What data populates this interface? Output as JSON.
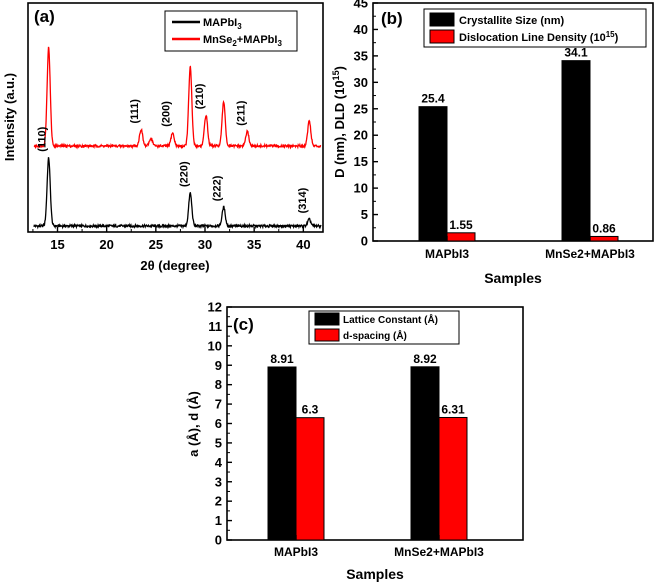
{
  "colors": {
    "black": "#000000",
    "red": "#ff0000"
  },
  "chart_data": [
    {
      "type": "line",
      "panel_label": "(a)",
      "title": "",
      "xlabel": "2θ (degree)",
      "ylabel": "Intensity (a.u.)",
      "xlim": [
        12,
        42
      ],
      "xticks": [
        15,
        20,
        25,
        30,
        35,
        40
      ],
      "xtick_labels": [
        "15",
        "20",
        "25",
        "30",
        "35",
        "40"
      ],
      "legend": {
        "position": "top-right"
      },
      "series": [
        {
          "name": "MAPbI3",
          "legend_main": "MAPbI",
          "legend_sub": "3",
          "color": "#000000",
          "offset": 0,
          "peaks": [
            {
              "x": 14.1,
              "h": 0.62
            },
            {
              "x": 28.5,
              "h": 0.3
            },
            {
              "x": 31.9,
              "h": 0.17
            },
            {
              "x": 40.6,
              "h": 0.06
            }
          ]
        },
        {
          "name": "MnSe2+MAPbI3",
          "legend_main": "MnSe",
          "legend_sub": "2",
          "legend_rest": "+MAPbI",
          "legend_sub2": "3",
          "color": "#ff0000",
          "offset": 1,
          "peaks": [
            {
              "x": 14.1,
              "h": 0.9
            },
            {
              "x": 23.5,
              "h": 0.15
            },
            {
              "x": 24.5,
              "h": 0.07
            },
            {
              "x": 26.7,
              "h": 0.12
            },
            {
              "x": 28.5,
              "h": 0.72
            },
            {
              "x": 30.1,
              "h": 0.28
            },
            {
              "x": 31.9,
              "h": 0.4
            },
            {
              "x": 34.3,
              "h": 0.13
            },
            {
              "x": 40.6,
              "h": 0.23
            }
          ]
        }
      ],
      "annotations": [
        {
          "text": "(110)",
          "x": 14.1,
          "trace": "MAPbI3"
        },
        {
          "text": "(220)",
          "x": 28.5,
          "trace": "MAPbI3"
        },
        {
          "text": "(222)",
          "x": 31.9,
          "trace": "MAPbI3"
        },
        {
          "text": "(314)",
          "x": 40.6,
          "trace": "MAPbI3"
        },
        {
          "text": "(111)",
          "x": 23.5,
          "trace": "MnSe2+MAPbI3"
        },
        {
          "text": "(200)",
          "x": 26.7,
          "trace": "MnSe2+MAPbI3"
        },
        {
          "text": "(210)",
          "x": 30.1,
          "trace": "MnSe2+MAPbI3"
        },
        {
          "text": "(211)",
          "x": 34.3,
          "trace": "MnSe2+MAPbI3"
        }
      ]
    },
    {
      "type": "bar",
      "panel_label": "(b)",
      "title": "",
      "categories": [
        "MAPbI3",
        "MnSe2+MAPbI3"
      ],
      "series": [
        {
          "name": "Crystallite Size (nm)",
          "color": "#000000",
          "values": [
            25.4,
            34.1
          ],
          "value_labels": [
            "25.4",
            "34.1"
          ]
        },
        {
          "name": "Dislocation Line Density (10",
          "name_sup": "15",
          "name_end": ")",
          "color": "#ff0000",
          "values": [
            1.55,
            0.86
          ],
          "value_labels": [
            "1.55",
            "0.86"
          ]
        }
      ],
      "xlabel": "Samples",
      "ylabel": "D (nm), DLD (10",
      "ylabel_sup": "15",
      "ylabel_end": ")",
      "ylim": [
        0,
        45
      ],
      "yticks": [
        "0",
        "5",
        "10",
        "15",
        "20",
        "25",
        "30",
        "35",
        "40",
        "45"
      ],
      "legend": {
        "position": "top-left"
      }
    },
    {
      "type": "bar",
      "panel_label": "(c)",
      "title": "",
      "categories": [
        "MAPbI3",
        "MnSe2+MAPbI3"
      ],
      "series": [
        {
          "name": "Lattice Constant (Å)",
          "color": "#000000",
          "values": [
            8.91,
            8.92
          ],
          "value_labels": [
            "8.91",
            "8.92"
          ]
        },
        {
          "name": "d-spacing (Å)",
          "color": "#ff0000",
          "values": [
            6.3,
            6.31
          ],
          "value_labels": [
            "6.3",
            "6.31"
          ]
        }
      ],
      "xlabel": "Samples",
      "ylabel": "a (Å), d (Å)",
      "ylim": [
        0,
        12
      ],
      "yticks": [
        "0",
        "1",
        "2",
        "3",
        "4",
        "5",
        "6",
        "7",
        "8",
        "9",
        "10",
        "11",
        "12"
      ],
      "legend": {
        "position": "top-center"
      }
    }
  ]
}
